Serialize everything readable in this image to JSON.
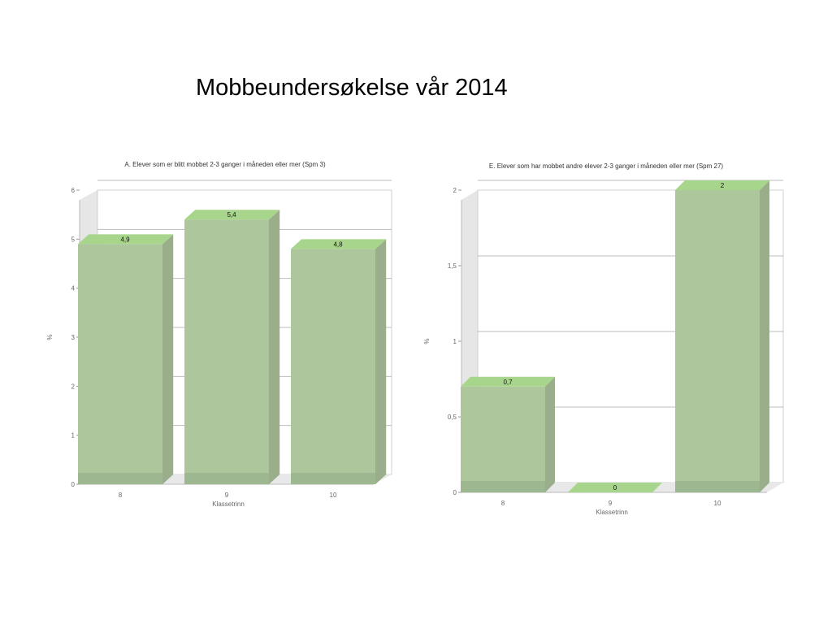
{
  "slide": {
    "title": "Mobbeundersøkelse vår 2014"
  },
  "colors": {
    "bar_face": "#adc69c",
    "bar_top": "#a8d58c",
    "bar_side": "#9aae8b",
    "bar_base": "#99b38d",
    "back_wall": "#ffffff",
    "side_wall": "#e6e6e6",
    "floor": "#e8e8e8",
    "grid": "#bdbdbd",
    "axis_text": "#666666",
    "label_text": "#111111"
  },
  "chart_data": [
    {
      "type": "bar",
      "title": "A. Elever som er blitt mobbet 2-3 ganger i måneden eller mer (Spm 3)",
      "xlabel": "Klassetrinn",
      "ylabel": "%",
      "categories": [
        "8",
        "9",
        "10"
      ],
      "values": [
        4.9,
        5.4,
        4.8
      ],
      "value_labels": [
        "4,9",
        "5,4",
        "4,8"
      ],
      "ylim": [
        0,
        6
      ],
      "y_ticks": [
        0,
        1,
        2,
        3,
        4,
        5,
        6
      ],
      "y_tick_labels": [
        "0",
        "1",
        "2",
        "3",
        "4",
        "5",
        "6"
      ],
      "grid": true,
      "style": "3d"
    },
    {
      "type": "bar",
      "title": "E. Elever som har mobbet andre elever 2-3 ganger i måneden eller mer (Spm 27)",
      "xlabel": "Klassetrinn",
      "ylabel": "%",
      "categories": [
        "8",
        "9",
        "10"
      ],
      "values": [
        0.7,
        0,
        2
      ],
      "value_labels": [
        "0,7",
        "0",
        "2"
      ],
      "ylim": [
        0,
        2
      ],
      "y_ticks": [
        0,
        0.5,
        1,
        1.5,
        2
      ],
      "y_tick_labels": [
        "0",
        "0,5",
        "1",
        "1,5",
        "2"
      ],
      "grid": true,
      "style": "3d"
    }
  ]
}
